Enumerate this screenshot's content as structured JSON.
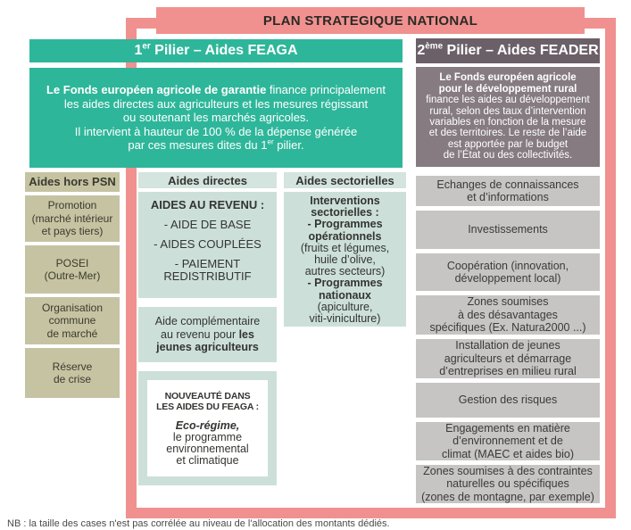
{
  "title": "PLAN STRATEGIQUE NATIONAL",
  "colors": {
    "pink": "#f0918f",
    "teal": "#2eb69a",
    "mint_header": "#d4e4de",
    "mint_box": "#cce0d9",
    "olive": "#c6c3a2",
    "gray": "#c7c5c4",
    "mauve_dark": "#6b6068",
    "mauve_light": "#857b81"
  },
  "aides_hors_psn": {
    "header": "Aides hors PSN",
    "items": [
      "Promotion\n(marché intérieur\net pays tiers)",
      "POSEI\n(Outre-Mer)",
      "Organisation\ncommune\nde marché",
      "Réserve\nde crise"
    ]
  },
  "pillar1": {
    "header": {
      "num": "1",
      "sup": "er",
      "rest": " Pilier – Aides FEAGA"
    },
    "description": {
      "bold": "Le Fonds européen agricole de garantie",
      "rest1": " finance principalement\nles aides directes aux agriculteurs et les mesures régissant\nou soutenant les marchés agricoles.\nIl intervient à hauteur de 100 % de la dépense générée\npar ces mesures dites du 1",
      "sup": "er",
      "rest2": " pilier."
    },
    "aides_directes": {
      "header": "Aides directes",
      "revenu_box": {
        "heading": "AIDES AU REVENU :",
        "items": [
          "- AIDE DE BASE",
          "- AIDES COUPLÉES",
          "- PAIEMENT\nREDISTRIBUTIF"
        ]
      },
      "complementaire_box": {
        "normal": "Aide complémentaire\nau revenu pour ",
        "bold": "les\njeunes agriculteurs"
      },
      "nouveaute_box": {
        "heading": "NOUVEAUTÉ DANS\nLES AIDES DU FEAGA :",
        "emphasis": "Eco-régime,",
        "rest": "le programme\nenvironnemental\net climatique"
      }
    },
    "aides_sectorielles": {
      "header": "Aides sectorielles",
      "segments": [
        {
          "text": "Interventions\nsectorielles :"
        },
        {
          "text": "- Programmes\nopérationnels"
        },
        {
          "text": "(fruits et légumes,\nhuile d’olive,\nautres secteurs)"
        },
        {
          "text": "- Programmes\nnationaux"
        },
        {
          "text": "(apiculture,\nviti-viniculture)"
        }
      ]
    }
  },
  "pillar2": {
    "header": {
      "num": "2",
      "sup": "ème",
      "rest": " Pilier – Aides FEADER"
    },
    "description": {
      "bold": "Le Fonds européen agricole\npour le développement rural",
      "rest": "\nfinance les aides au développement\nrural, selon des taux d’intervention\nvariables en fonction de la mesure\net des territoires. Le reste de l’aide\nest apportée par le budget\nde l’État ou des collectivités."
    },
    "items": [
      "Echanges de connaissances\net d’informations",
      "Investissements",
      "Coopération (innovation,\ndéveloppement local)",
      "Zones soumises\nà des désavantages\nspécifiques (Ex. Natura2000 ...)",
      "Installation de jeunes\nagriculteurs et démarrage\nd’entreprises en milieu rural",
      "Gestion des risques",
      "Engagements en matière\nd’environnement et de\nclimat (MAEC et aides bio)",
      "Zones soumises à des contraintes\nnaturelles ou spécifiques\n(zones de montagne, par exemple)"
    ]
  },
  "note": "NB : la taille des cases n'est pas corrélée au niveau de l'allocation des montants dédiés."
}
